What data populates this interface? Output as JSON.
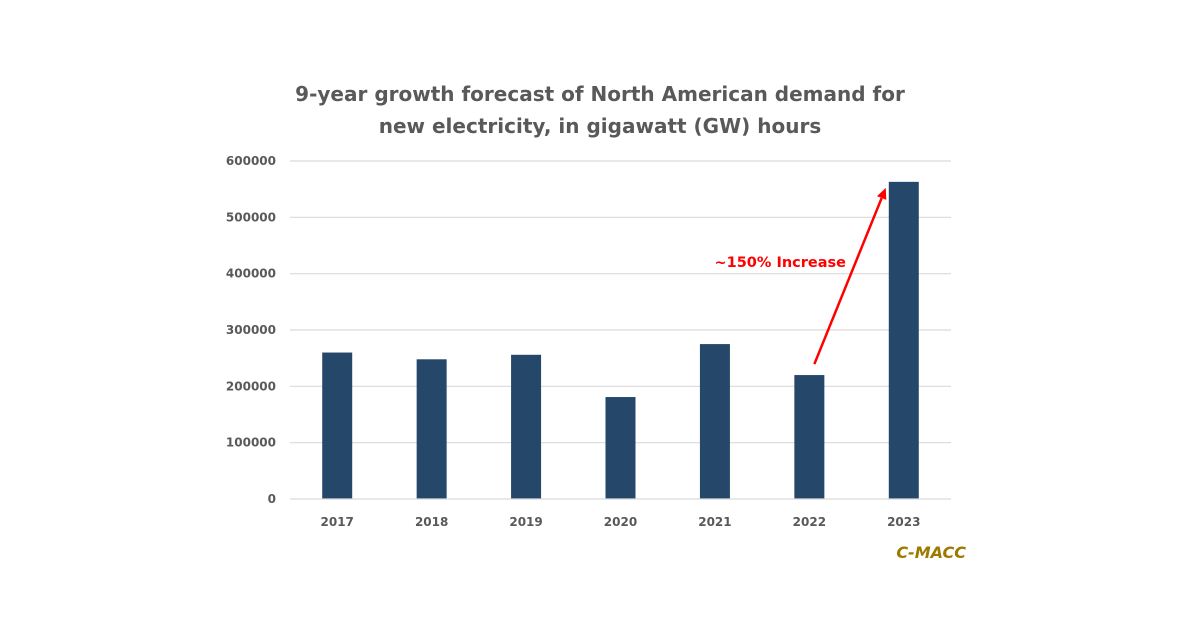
{
  "chart_data": {
    "type": "bar",
    "title": [
      "9-year growth forecast of North American demand for",
      "new electricity, in gigawatt (GW) hours"
    ],
    "xlabel": "",
    "ylabel": "",
    "categories": [
      "2017",
      "2018",
      "2019",
      "2020",
      "2021",
      "2022",
      "2023"
    ],
    "values": [
      260000,
      248000,
      256000,
      181000,
      275000,
      220000,
      563000
    ],
    "ylim": [
      0,
      600000
    ],
    "yticks": [
      "0",
      "100000",
      "200000",
      "300000",
      "400000",
      "500000",
      "600000"
    ],
    "ytick_values": [
      0,
      100000,
      200000,
      300000,
      400000,
      500000,
      600000
    ],
    "grid": true,
    "legend": "none",
    "bar_color": "#24476a",
    "annotation": {
      "text": "~150% Increase",
      "from_category": "2022",
      "to_category": "2023",
      "color": "#ff0000"
    },
    "source": "C-MACC",
    "source_color": "#9c7a00"
  }
}
